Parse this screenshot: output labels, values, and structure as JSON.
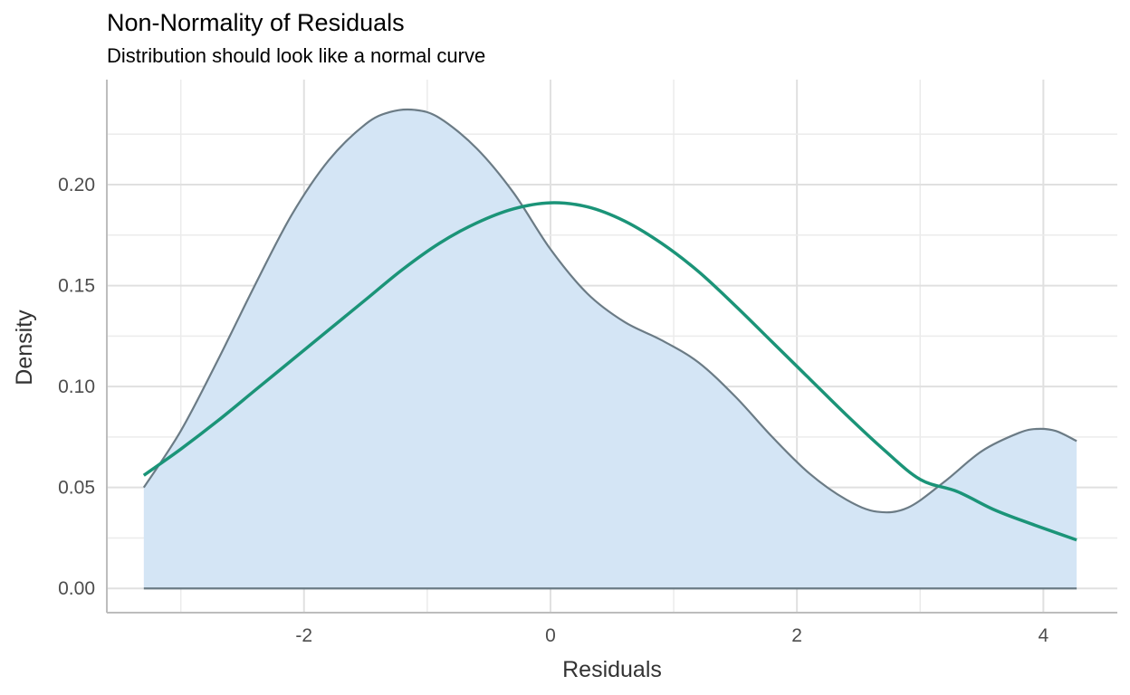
{
  "chart_data": {
    "type": "area",
    "title": "Non-Normality of Residuals",
    "subtitle": "Distribution should look like a normal curve",
    "xlabel": "Residuals",
    "ylabel": "Density",
    "xlim": [
      -3.6,
      4.6
    ],
    "ylim": [
      -0.012,
      0.252
    ],
    "x_ticks": [
      -2,
      0,
      2,
      4
    ],
    "x_tick_labels": [
      "-2",
      "0",
      "2",
      "4"
    ],
    "y_ticks": [
      0,
      0.05,
      0.1,
      0.15,
      0.2
    ],
    "y_tick_labels": [
      "0.00",
      "0.05",
      "0.10",
      "0.15",
      "0.20"
    ],
    "grid": true,
    "legend": "none",
    "series": [
      {
        "kind": "density",
        "fill": "#d4e5f5",
        "stroke": "#6b7b85",
        "x": [
          -3.3,
          -3.0,
          -2.7,
          -2.4,
          -2.1,
          -1.8,
          -1.5,
          -1.3,
          -1.1,
          -0.9,
          -0.6,
          -0.3,
          0.0,
          0.3,
          0.6,
          0.9,
          1.2,
          1.5,
          1.8,
          2.1,
          2.4,
          2.65,
          2.9,
          3.2,
          3.5,
          3.8,
          3.95,
          4.1,
          4.27
        ],
        "values": [
          0.05,
          0.078,
          0.113,
          0.15,
          0.185,
          0.212,
          0.23,
          0.236,
          0.237,
          0.233,
          0.218,
          0.196,
          0.168,
          0.146,
          0.132,
          0.123,
          0.112,
          0.095,
          0.075,
          0.057,
          0.044,
          0.038,
          0.04,
          0.053,
          0.068,
          0.077,
          0.079,
          0.078,
          0.073
        ]
      },
      {
        "kind": "normal",
        "stroke": "#1b9478",
        "x": [
          -3.3,
          -3.0,
          -2.7,
          -2.4,
          -2.1,
          -1.8,
          -1.5,
          -1.2,
          -0.9,
          -0.6,
          -0.3,
          0.0,
          0.3,
          0.6,
          0.9,
          1.2,
          1.5,
          1.8,
          2.1,
          2.4,
          2.7,
          3.0,
          3.3,
          3.6,
          3.9,
          4.27
        ],
        "values": [
          0.056,
          0.069,
          0.083,
          0.098,
          0.113,
          0.128,
          0.143,
          0.158,
          0.171,
          0.181,
          0.188,
          0.191,
          0.189,
          0.182,
          0.171,
          0.157,
          0.14,
          0.122,
          0.104,
          0.086,
          0.069,
          0.054,
          0.048,
          0.039,
          0.032,
          0.024
        ]
      }
    ]
  }
}
